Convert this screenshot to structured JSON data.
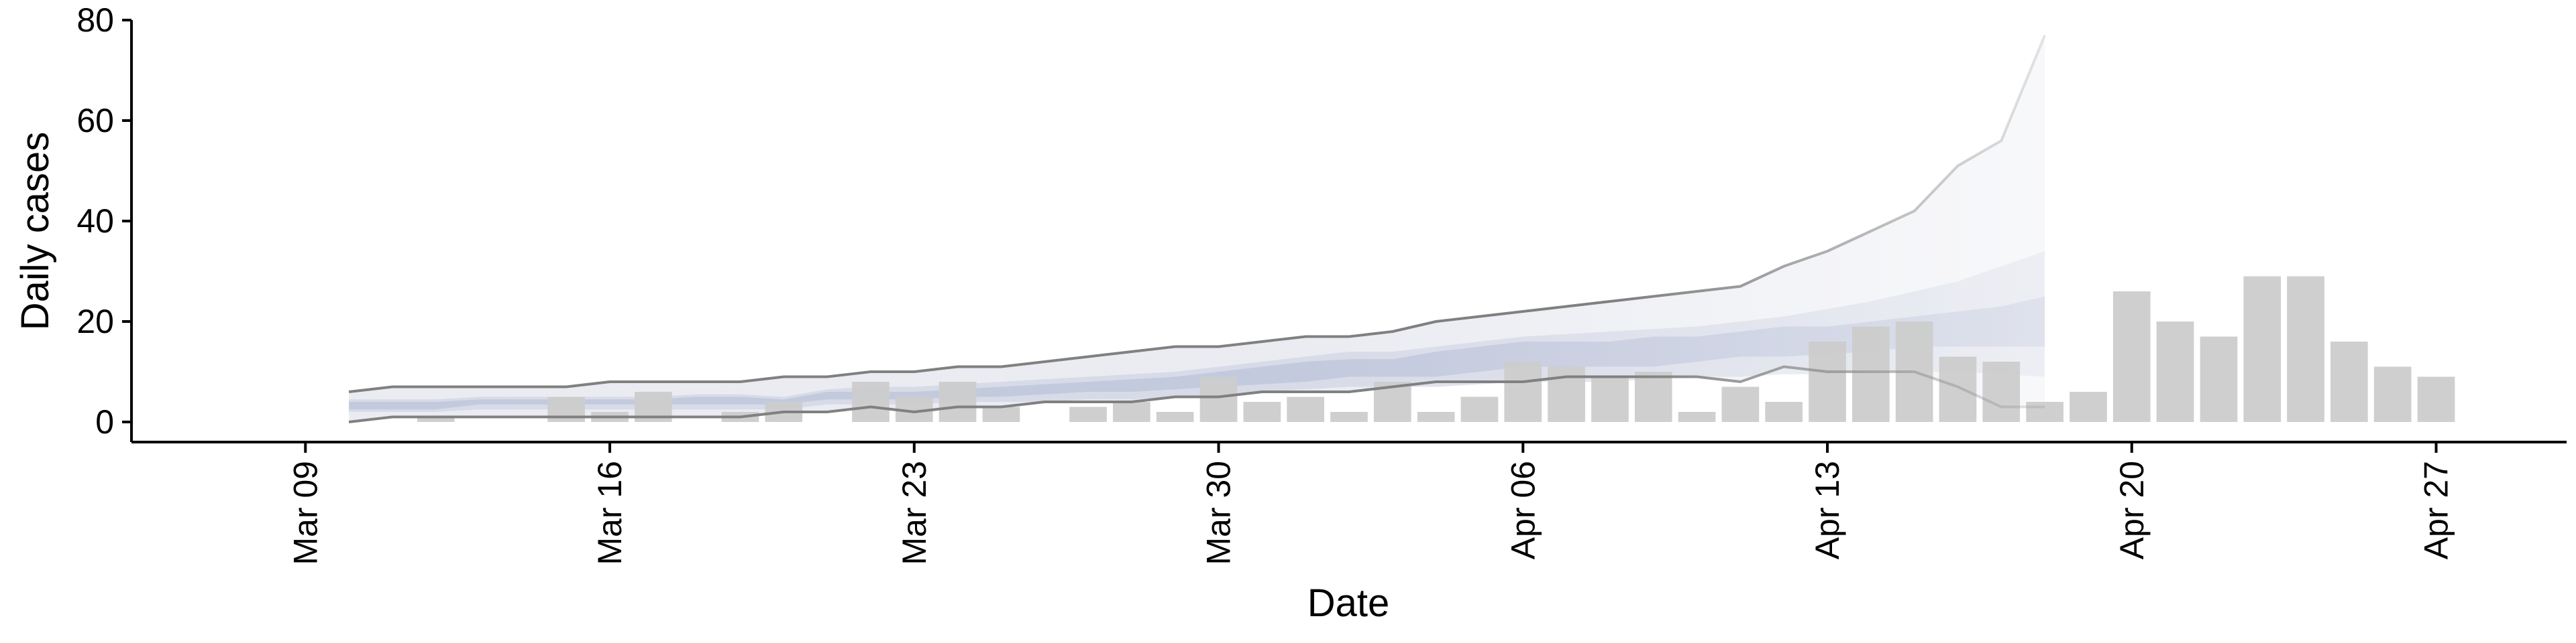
{
  "chart_data": {
    "type": "bar",
    "title": "",
    "xlabel": "Date",
    "ylabel": "Daily cases",
    "ylim": [
      -4,
      80
    ],
    "xlim": [
      "2020-03-05",
      "2020-04-30"
    ],
    "x_ticks": [
      "2020-03-09",
      "2020-03-16",
      "2020-03-23",
      "2020-03-30",
      "2020-04-06",
      "2020-04-13",
      "2020-04-20",
      "2020-04-27"
    ],
    "x_tick_labels": [
      "Mar 09",
      "Mar 16",
      "Mar 23",
      "Mar 30",
      "Apr 06",
      "Apr 13",
      "Apr 20",
      "Apr 27"
    ],
    "y_ticks": [
      0,
      20,
      40,
      60,
      80
    ],
    "grid": false,
    "colors": {
      "bars": "#cccccc",
      "interval_outer": "#e6e8ef",
      "interval_mid": "#d4d8e6",
      "interval_inner": "#c0c7dc",
      "bound_lines": "#808080"
    },
    "bars": {
      "x": [
        "2020-03-12",
        "2020-03-15",
        "2020-03-16",
        "2020-03-17",
        "2020-03-19",
        "2020-03-20",
        "2020-03-22",
        "2020-03-23",
        "2020-03-24",
        "2020-03-25",
        "2020-03-27",
        "2020-03-28",
        "2020-03-29",
        "2020-03-30",
        "2020-03-31",
        "2020-04-01",
        "2020-04-02",
        "2020-04-03",
        "2020-04-04",
        "2020-04-05",
        "2020-04-06",
        "2020-04-07",
        "2020-04-08",
        "2020-04-09",
        "2020-04-10",
        "2020-04-11",
        "2020-04-12",
        "2020-04-13",
        "2020-04-14",
        "2020-04-15",
        "2020-04-16",
        "2020-04-17",
        "2020-04-18",
        "2020-04-19",
        "2020-04-20",
        "2020-04-21",
        "2020-04-22",
        "2020-04-23",
        "2020-04-24",
        "2020-04-25",
        "2020-04-26",
        "2020-04-27"
      ],
      "values": [
        1,
        5,
        2,
        6,
        2,
        4,
        8,
        5,
        8,
        3,
        3,
        4,
        2,
        9,
        4,
        5,
        2,
        8,
        2,
        5,
        12,
        11,
        9,
        10,
        2,
        7,
        4,
        16,
        19,
        20,
        13,
        12,
        4,
        6,
        26,
        20,
        17,
        29,
        29,
        16,
        11,
        9
      ]
    },
    "forecast": {
      "x": [
        "2020-03-10",
        "2020-03-11",
        "2020-03-12",
        "2020-03-13",
        "2020-03-14",
        "2020-03-15",
        "2020-03-16",
        "2020-03-17",
        "2020-03-18",
        "2020-03-19",
        "2020-03-20",
        "2020-03-21",
        "2020-03-22",
        "2020-03-23",
        "2020-03-24",
        "2020-03-25",
        "2020-03-26",
        "2020-03-27",
        "2020-03-28",
        "2020-03-29",
        "2020-03-30",
        "2020-03-31",
        "2020-04-01",
        "2020-04-02",
        "2020-04-03",
        "2020-04-04",
        "2020-04-05",
        "2020-04-06",
        "2020-04-07",
        "2020-04-08",
        "2020-04-09",
        "2020-04-10",
        "2020-04-11",
        "2020-04-12",
        "2020-04-13",
        "2020-04-14",
        "2020-04-15",
        "2020-04-16",
        "2020-04-17",
        "2020-04-18"
      ],
      "upper_90": [
        6,
        7,
        7,
        7,
        7,
        7,
        8,
        8,
        8,
        8,
        9,
        9,
        10,
        10,
        11,
        11,
        12,
        13,
        14,
        15,
        15,
        16,
        17,
        17,
        18,
        20,
        21,
        22,
        23,
        24,
        25,
        26,
        27,
        31,
        34,
        38,
        42,
        51,
        56,
        77
      ],
      "upper_50": [
        4.5,
        4.5,
        4.5,
        5,
        5,
        5,
        5,
        5,
        5.5,
        5.5,
        5,
        6.5,
        7,
        7,
        7.5,
        8,
        8.5,
        9,
        9.5,
        10,
        11,
        12,
        13,
        14,
        14,
        15,
        16,
        17,
        17.5,
        18,
        18.5,
        19,
        20,
        21,
        22.5,
        24,
        26,
        28,
        31,
        34
      ],
      "upper_20": [
        4,
        4,
        4,
        4.5,
        4.5,
        4.5,
        4.5,
        4.5,
        5,
        5,
        4.5,
        6,
        6,
        6,
        6.5,
        7,
        7.5,
        8,
        8.5,
        9,
        10,
        11,
        12,
        12.5,
        12.5,
        14,
        15,
        16,
        16,
        16,
        17,
        17,
        18,
        19,
        19,
        20,
        21,
        22,
        23,
        25
      ],
      "lower_20": [
        2.5,
        2.5,
        2.5,
        3.5,
        3.5,
        3.5,
        3.5,
        3.5,
        3.5,
        3.5,
        3.5,
        4.5,
        4.5,
        4.5,
        5,
        5,
        5.5,
        6,
        6,
        6.5,
        7,
        7.5,
        8,
        9,
        9,
        9,
        10,
        11,
        11,
        11,
        11,
        12,
        13,
        13,
        13.5,
        14,
        15,
        15,
        15,
        15
      ],
      "lower_50": [
        2,
        2,
        2,
        2.5,
        2.5,
        2.5,
        2.5,
        2.5,
        2.5,
        2.5,
        2.5,
        3.5,
        3.5,
        3.5,
        4,
        4,
        4,
        4.5,
        4.5,
        5,
        5.5,
        6,
        6.5,
        7,
        7,
        7,
        7.5,
        8,
        8,
        8,
        8.5,
        9,
        9,
        9.5,
        9.5,
        10,
        10,
        10,
        9.5,
        9
      ],
      "lower_90": [
        0,
        1,
        1,
        1,
        1,
        1,
        1,
        1,
        1,
        1,
        2,
        2,
        3,
        2,
        3,
        3,
        4,
        4,
        4,
        5,
        5,
        6,
        6,
        6,
        7,
        8,
        8,
        8,
        9,
        9,
        9,
        9,
        8,
        11,
        10,
        10,
        10,
        7,
        3,
        3
      ]
    }
  }
}
